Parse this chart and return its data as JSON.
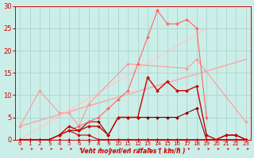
{
  "background_color": "#cceee8",
  "grid_color": "#aad4ce",
  "xlabel": "Vent moyen/en rafales ( km/h )",
  "xlabel_color": "#cc0000",
  "tick_color": "#cc0000",
  "xlim": [
    -0.5,
    23.5
  ],
  "ylim": [
    0,
    30
  ],
  "xticks": [
    0,
    1,
    2,
    3,
    4,
    5,
    6,
    7,
    8,
    9,
    10,
    11,
    12,
    13,
    14,
    15,
    16,
    17,
    18,
    19,
    20,
    21,
    22,
    23
  ],
  "yticks": [
    0,
    5,
    10,
    15,
    20,
    25,
    30
  ],
  "lines": [
    {
      "x": [
        0,
        1,
        2,
        3,
        4,
        5,
        6,
        7,
        8,
        9,
        10,
        11,
        12,
        13,
        14,
        15,
        16,
        17,
        18,
        19,
        20,
        21,
        22,
        23
      ],
      "y": [
        0,
        0,
        0,
        0,
        0,
        0,
        0,
        0,
        0,
        0,
        0,
        0,
        0,
        0,
        0,
        0,
        0,
        0,
        0,
        0,
        0,
        0,
        0,
        0
      ],
      "color": "#cc0000",
      "lw": 0.8,
      "marker": "D",
      "ms": 2,
      "zorder": 5
    },
    {
      "x": [
        0,
        1,
        2,
        3,
        4,
        5,
        6,
        7,
        8,
        9,
        10,
        11,
        12,
        13,
        14,
        15,
        16,
        17,
        18,
        19,
        20,
        21,
        22,
        23
      ],
      "y": [
        0,
        0,
        0,
        0,
        1,
        2,
        1,
        1,
        0,
        0,
        0,
        0,
        0,
        0,
        0,
        0,
        0,
        0,
        0,
        0,
        0,
        0,
        0,
        0
      ],
      "color": "#cc0000",
      "lw": 0.8,
      "marker": "D",
      "ms": 2,
      "zorder": 4
    },
    {
      "x": [
        0,
        1,
        2,
        3,
        4,
        5,
        6,
        7,
        8,
        9,
        10,
        11,
        12,
        13,
        14,
        15,
        16,
        17,
        18,
        19,
        20,
        21,
        22,
        23
      ],
      "y": [
        0,
        0,
        0,
        0,
        1,
        3,
        2,
        3,
        3,
        1,
        5,
        5,
        5,
        14,
        11,
        13,
        11,
        11,
        12,
        1,
        0,
        1,
        1,
        0
      ],
      "color": "#cc0000",
      "lw": 1.0,
      "marker": "D",
      "ms": 2,
      "zorder": 6
    },
    {
      "x": [
        0,
        1,
        2,
        3,
        4,
        5,
        6,
        7,
        8,
        9,
        10,
        11,
        12,
        13,
        14,
        15,
        16,
        17,
        18,
        19,
        20,
        21,
        22,
        23
      ],
      "y": [
        0,
        0,
        0,
        0,
        1,
        2,
        2,
        4,
        4,
        1,
        5,
        5,
        5,
        5,
        5,
        5,
        5,
        6,
        7,
        0,
        0,
        1,
        1,
        0
      ],
      "color": "#880000",
      "lw": 0.8,
      "marker": "D",
      "ms": 2,
      "zorder": 3
    },
    {
      "x": [
        0,
        2,
        4,
        5,
        6,
        7,
        11,
        17,
        18,
        23
      ],
      "y": [
        3,
        11,
        6,
        6,
        3,
        8,
        17,
        16,
        18,
        4
      ],
      "color": "#ff9999",
      "lw": 0.8,
      "marker": "D",
      "ms": 2,
      "zorder": 2
    },
    {
      "x": [
        0,
        23
      ],
      "y": [
        3,
        18
      ],
      "color": "#ffaaaa",
      "lw": 1.2,
      "marker": null,
      "ms": 0,
      "zorder": 1
    },
    {
      "x": [
        0,
        19
      ],
      "y": [
        0,
        25
      ],
      "color": "#ffcccc",
      "lw": 1.2,
      "marker": null,
      "ms": 0,
      "zorder": 1
    },
    {
      "x": [
        0,
        1,
        2,
        3,
        4,
        5,
        6,
        7,
        8,
        9,
        10,
        11,
        12,
        13,
        14,
        15,
        16,
        17,
        18,
        19
      ],
      "y": [
        0,
        0,
        0,
        0,
        1,
        2,
        3,
        4,
        5,
        7,
        9,
        11,
        17,
        23,
        29,
        26,
        26,
        27,
        25,
        5
      ],
      "color": "#ff6666",
      "lw": 0.8,
      "marker": "D",
      "ms": 2,
      "zorder": 3
    }
  ],
  "arrow_color": "#cc0000"
}
